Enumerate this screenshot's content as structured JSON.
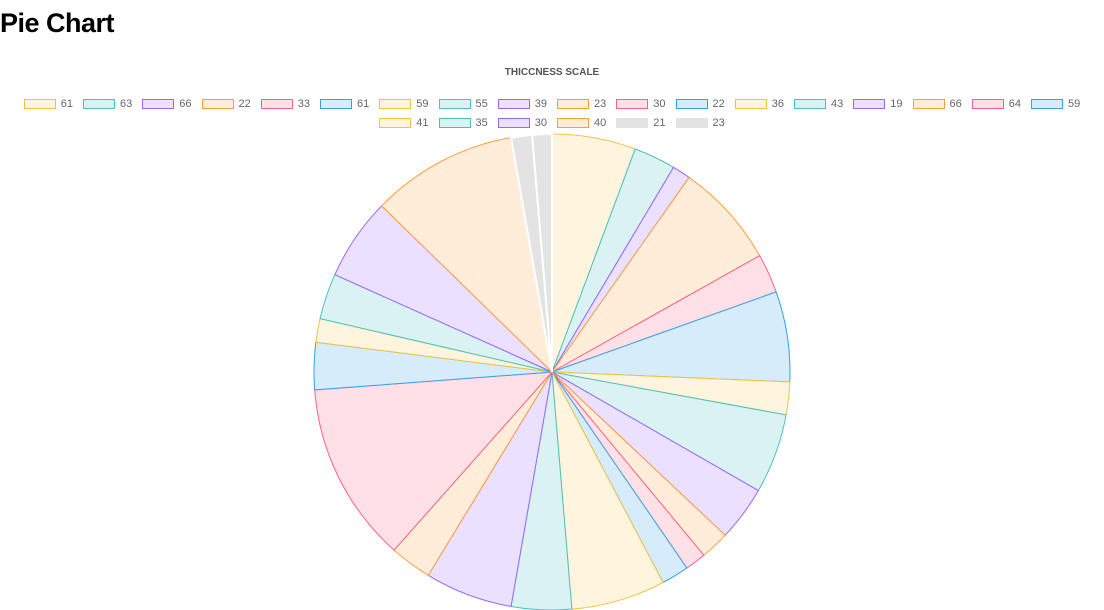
{
  "page": {
    "title": "Pie Chart"
  },
  "chart_data": {
    "type": "pie",
    "title": "THICCNESS SCALE",
    "legend_position": "top",
    "start_angle": "top, clockwise",
    "palette": {
      "yellow": {
        "border": "#f5c343",
        "fill": "#fff4de"
      },
      "teal": {
        "border": "#4bc0c0",
        "fill": "#dbf2f2"
      },
      "purple": {
        "border": "#9966ff",
        "fill": "#ebe0ff"
      },
      "orange": {
        "border": "#ff9f40",
        "fill": "#ffecd9"
      },
      "red": {
        "border": "#ff6384",
        "fill": "#ffe0e6"
      },
      "blue": {
        "border": "#36a2eb",
        "fill": "#d7ecfb"
      },
      "grey": {
        "border": "#e3e3e3",
        "fill": "#e3e3e3"
      }
    },
    "categories": [
      "61",
      "63",
      "66",
      "22",
      "33",
      "61",
      "59",
      "55",
      "39",
      "23",
      "30",
      "22",
      "36",
      "43",
      "19",
      "66",
      "64",
      "59",
      "41",
      "35",
      "30",
      "40",
      "21",
      "23"
    ],
    "colors": [
      "yellow",
      "teal",
      "purple",
      "orange",
      "red",
      "blue",
      "yellow",
      "teal",
      "purple",
      "orange",
      "red",
      "blue",
      "yellow",
      "teal",
      "purple",
      "orange",
      "red",
      "blue",
      "yellow",
      "teal",
      "purple",
      "orange",
      "grey",
      "grey"
    ],
    "values": [
      6.4,
      3.2,
      1.4,
      8.0,
      3.0,
      6.9,
      2.5,
      6.1,
      4.2,
      2.2,
      1.6,
      2.1,
      7.2,
      4.6,
      6.7,
      3.2,
      13.8,
      3.6,
      1.8,
      3.5,
      6.3,
      11.2,
      1.6,
      1.5
    ]
  }
}
